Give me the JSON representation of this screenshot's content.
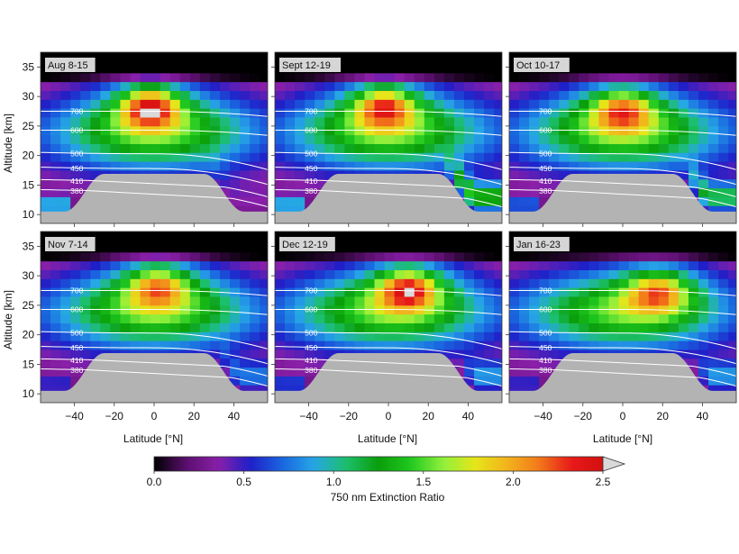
{
  "chart_data": {
    "type": "heatmap",
    "x_axis": {
      "label": "Latitude [°N]",
      "range": [
        -57,
        57
      ],
      "ticks": [
        -40,
        -20,
        0,
        20,
        40
      ],
      "tick_labels": [
        "−40",
        "−20",
        "0",
        "20",
        "40"
      ]
    },
    "y_axis": {
      "label": "Altitude [km]",
      "range": [
        8.5,
        37.5
      ],
      "ticks": [
        10,
        15,
        20,
        25,
        30,
        35
      ],
      "tick_labels": [
        "10",
        "15",
        "20",
        "25",
        "30",
        "35"
      ]
    },
    "colorbar": {
      "label": "750 nm Extinction Ratio",
      "range": [
        0,
        2.5
      ],
      "ticks": [
        0.0,
        0.5,
        1.0,
        1.5,
        2.0,
        2.5
      ],
      "tick_labels": [
        "0.0",
        "0.5",
        "1.0",
        "1.5",
        "2.0",
        "2.5"
      ],
      "extend": "max",
      "colors": [
        "#000000",
        "#5a0f6e",
        "#8a1fa8",
        "#1f1fc8",
        "#1a66e0",
        "#26a7e6",
        "#1cbf6a",
        "#0a9e0a",
        "#1fc81f",
        "#8ff03c",
        "#e6e619",
        "#f2b41c",
        "#f27a1a",
        "#e81a1a",
        "#d40f0f",
        "#d9d9d9"
      ]
    },
    "contours": {
      "labels": [
        "700",
        "600",
        "500",
        "450",
        "410",
        "380"
      ],
      "levels_kelvin": [
        700,
        600,
        500,
        450,
        410,
        380
      ]
    },
    "ground_mask_color": "#b3b3b3",
    "panels": [
      {
        "title": "Aug 8-15",
        "peak": {
          "lat": -2,
          "alt": 28.5,
          "value": 2.2
        },
        "lower_enhancement": {
          "lat_min": 20,
          "lat_max": 57,
          "strength": 0.1
        },
        "south_low_enhancement": 0.8
      },
      {
        "title": "Sept 12-19",
        "peak": {
          "lat": -2,
          "alt": 28.5,
          "value": 2.05
        },
        "lower_enhancement": {
          "lat_min": 28,
          "lat_max": 57,
          "strength": 1.1
        },
        "south_low_enhancement": 0.8
      },
      {
        "title": "Oct 10-17",
        "peak": {
          "lat": 0,
          "alt": 28,
          "value": 1.9
        },
        "lower_enhancement": {
          "lat_min": 30,
          "lat_max": 57,
          "strength": 0.9
        },
        "south_low_enhancement": 0.5
      },
      {
        "title": "Nov 7-14",
        "peak": {
          "lat": 2,
          "alt": 28.5,
          "value": 1.85
        },
        "lower_enhancement": {
          "lat_min": 32,
          "lat_max": 57,
          "strength": 0.5
        },
        "south_low_enhancement": 0.3
      },
      {
        "title": "Dec 12-19",
        "peak": {
          "lat": 10,
          "alt": 28,
          "value": 2.1
        },
        "lower_enhancement": {
          "lat_min": 35,
          "lat_max": 57,
          "strength": 0.6
        },
        "south_low_enhancement": 0.4
      },
      {
        "title": "Jan 16-23",
        "peak": {
          "lat": 18,
          "alt": 27.5,
          "value": 1.85
        },
        "lower_enhancement": {
          "lat_min": 35,
          "lat_max": 57,
          "strength": 0.6
        },
        "south_low_enhancement": 0.3
      }
    ]
  }
}
